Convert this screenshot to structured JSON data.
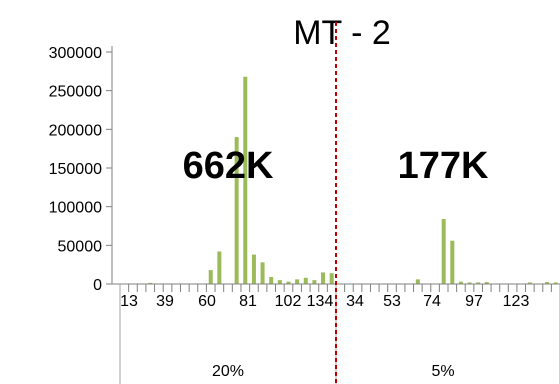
{
  "chart_data": {
    "type": "bar",
    "title": "MT - 2",
    "ylim": [
      0,
      300000
    ],
    "y_ticks": [
      0,
      50000,
      100000,
      150000,
      200000,
      250000,
      300000
    ],
    "y_tick_labels": [
      "0",
      "50000",
      "100000",
      "150000",
      "200000",
      "250000",
      "300000"
    ],
    "x_tick_labels_visible": [
      "13",
      "39",
      "60",
      "81",
      "102",
      "134",
      "34",
      "53",
      "74",
      "97",
      "123"
    ],
    "groups": [
      {
        "label": "20%",
        "annotation": "662K",
        "values": [
          0,
          0,
          0,
          1500,
          0,
          0,
          0,
          0,
          0,
          0,
          18000,
          42000,
          0,
          190000,
          268000,
          38000,
          28000,
          9000,
          5000,
          3000,
          6000,
          8000,
          5000,
          15000,
          14000
        ]
      },
      {
        "label": "5%",
        "annotation": "177K",
        "values": [
          0,
          0,
          0,
          0,
          0,
          0,
          0,
          0,
          0,
          6000,
          0,
          0,
          84000,
          56000,
          3000,
          2000,
          2000,
          2500,
          0,
          0,
          0,
          0,
          2000,
          0,
          2500,
          2000
        ]
      }
    ],
    "bar_color": "#9bbb59",
    "divider_color": "#c00000"
  }
}
